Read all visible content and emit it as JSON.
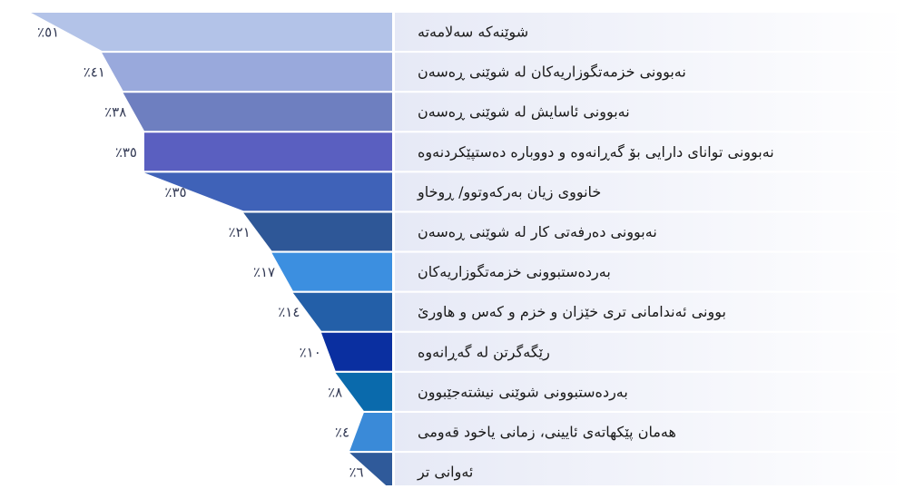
{
  "chart_data": {
    "type": "funnel",
    "categories": [
      "شوێنەکە سەلامەتە",
      "نەبوونی خزمەتگوزاریەکان لە شوێنی ڕەسەن",
      "نەبوونی ئاسایش لە شوێنی ڕەسەن",
      "نەبوونی توانای دارایی بۆ گەڕانەوە و دووبارە دەستپێکردنەوە",
      "خانووی زیان بەرکەوتوو/ ڕوخاو",
      "نەبوونی دەرفەتی کار لە شوێنی ڕەسەن",
      "بەردەستبوونی خزمەتگوزاریەکان",
      "بوونی ئەندامانی تری خێزان و خزم و کەس و هاورێ",
      "رێگەگرتن لە گەڕانەوە",
      "بەردەستبوونی شوێنی نیشتەجێبوون",
      "هەمان پێکهاتەی ئایینی، زمانی یاخود قەومی",
      "ئەوانی تر"
    ],
    "values": [
      51,
      41,
      38,
      35,
      35,
      21,
      17,
      14,
      10,
      8,
      4,
      6
    ],
    "value_labels": [
      "٪٥١",
      "٪٤١",
      "٪٣٨",
      "٪٣٥",
      "٪٣٥",
      "٪٢١",
      "٪١٧",
      "٪١٤",
      "٪١٠",
      "٪٨",
      "٪٤",
      "٪٦"
    ],
    "colors": [
      "#b3c3e8",
      "#99a9dc",
      "#6e7fc0",
      "#5a5fc0",
      "#3f62b8",
      "#2e5797",
      "#3c8fe0",
      "#235fa8",
      "#0a2fa0",
      "#0a6aac",
      "#3a8ad8",
      "#2f5a9a"
    ]
  }
}
